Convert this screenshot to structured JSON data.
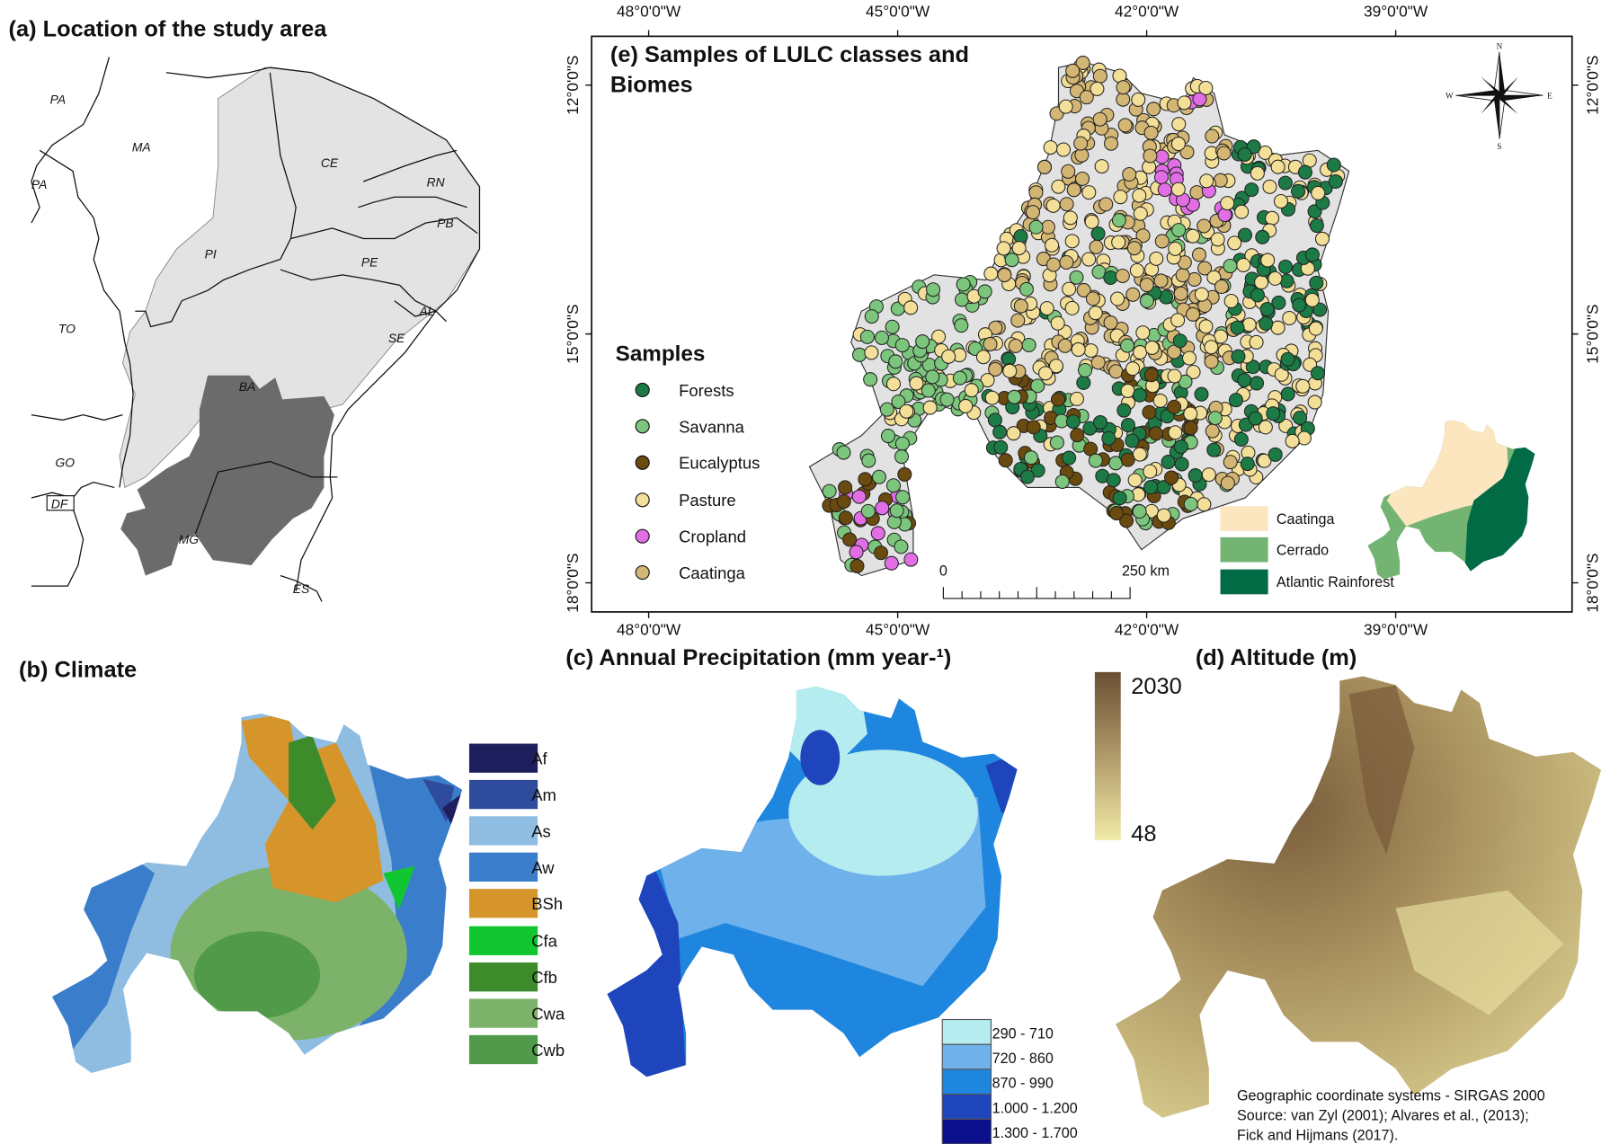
{
  "panel_a": {
    "title": "(a) Location of the study area",
    "states": [
      "PA",
      "MA",
      "PA",
      "CE",
      "RN",
      "PB",
      "PI",
      "PE",
      "AL",
      "TO",
      "SE",
      "BA",
      "GO",
      "DF",
      "MG",
      "ES"
    ]
  },
  "panel_b": {
    "title": "(b) Climate",
    "classes": [
      {
        "label": "Af",
        "color": "#1e1f5c"
      },
      {
        "label": "Am",
        "color": "#2f4c9c"
      },
      {
        "label": "As",
        "color": "#8fbde2"
      },
      {
        "label": "Aw",
        "color": "#3a7ecb"
      },
      {
        "label": "BSh",
        "color": "#d5952a"
      },
      {
        "label": "Cfa",
        "color": "#12c631"
      },
      {
        "label": "Cfb",
        "color": "#3d8b2b"
      },
      {
        "label": "Cwa",
        "color": "#7db26b"
      },
      {
        "label": "Cwb",
        "color": "#509a49"
      }
    ]
  },
  "panel_c": {
    "title": "(c) Annual Precipitation (mm year-¹)",
    "classes": [
      {
        "label": "290 - 710",
        "color": "#b4ecef"
      },
      {
        "label": "720 - 860",
        "color": "#6fb1ea"
      },
      {
        "label": "870 - 990",
        "color": "#1f86df"
      },
      {
        "label": "1.000 - 1.200",
        "color": "#1f45bc"
      },
      {
        "label": "1.300 - 1.700",
        "color": "#0b0f8b"
      }
    ]
  },
  "panel_d": {
    "title": "(d) Altitude (m)",
    "max": "2030",
    "min": "48",
    "color_high": "#6b4f33",
    "color_low": "#f1eaa6"
  },
  "panel_e": {
    "title_line1": "(e) Samples of LULC classes and",
    "title_line2": "Biomes",
    "lon_ticks": [
      "48°0'0\"W",
      "45°0'0\"W",
      "42°0'0\"W",
      "39°0'0\"W"
    ],
    "lat_ticks": [
      "12°0'0\"S",
      "15°0'0\"S",
      "18°0'0\"S"
    ],
    "compass": {
      "n": "N",
      "s": "S",
      "e": "E",
      "w": "W"
    },
    "scale_bar": {
      "start": "0",
      "end": "250 km"
    },
    "samples": {
      "title": "Samples",
      "items": [
        {
          "label": "Forests",
          "color": "#1c7a45"
        },
        {
          "label": "Savanna",
          "color": "#7cc57c"
        },
        {
          "label": "Eucalyptus",
          "color": "#6b4a0f"
        },
        {
          "label": "Pasture",
          "color": "#f3df98"
        },
        {
          "label": "Cropland",
          "color": "#e26ee6"
        },
        {
          "label": "Caatinga",
          "color": "#d3b574"
        }
      ]
    },
    "biomes": [
      {
        "label": "Caatinga",
        "color": "#fbe6c0"
      },
      {
        "label": "Cerrado",
        "color": "#73b473"
      },
      {
        "label": "Atlantic Rainforest",
        "color": "#006b45"
      }
    ]
  },
  "footnote": {
    "line1": "Geographic coordinate systems - SIRGAS 2000",
    "line2": "Source: van Zyl (2001); Alvares et al., (2013);",
    "line3": " Fick and Hijmans (2017)."
  }
}
